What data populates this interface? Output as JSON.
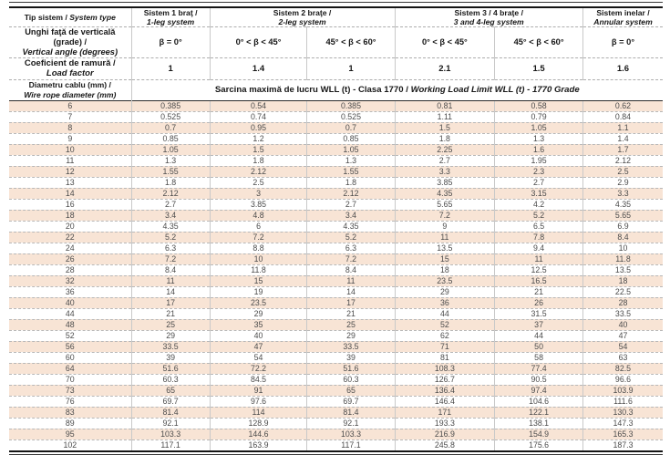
{
  "doc": {
    "language": "Romanian / English",
    "stripe_color": "#f8e4d5",
    "rule_color": "#151515"
  },
  "table": {
    "row_headers": {
      "system_type": {
        "ro": "Tip sistem /",
        "en": "System type"
      },
      "angle": {
        "ro": "Unghi faţă de verticală (grade) /",
        "en": "Vertical angle (degrees)"
      },
      "load_factor": {
        "ro": "Coeficient de ramură /",
        "en": "Load factor"
      },
      "diameter": {
        "ro": "Diametru cablu (mm) /",
        "en": "Wire rope diameter (mm)"
      }
    },
    "systems": [
      {
        "ro": "Sistem 1 braţ /",
        "en": "1-leg system"
      },
      {
        "ro": "Sistem 2 braţe /",
        "en": "2-leg system"
      },
      {
        "ro": "Sistem 3 / 4 braţe /",
        "en": "3 and 4-leg system"
      },
      {
        "ro": "Sistem inelar /",
        "en": "Annular system"
      }
    ],
    "angles": [
      "β = 0°",
      "0° < β < 45°",
      "45° < β < 60°",
      "0° < β < 45°",
      "45° < β < 60°",
      "β = 0°"
    ],
    "load_factors": [
      "1",
      "1.4",
      "1",
      "2.1",
      "1.5",
      "1.6"
    ],
    "wll_title": {
      "ro": "Sarcina maximă de lucru WLL (t) - Clasa 1770 /",
      "en": "Working Load Limit WLL (t) - 1770 Grade"
    },
    "rows": [
      {
        "d": "6",
        "v": [
          "0.385",
          "0.54",
          "0.385",
          "0.81",
          "0.58",
          "0.62"
        ]
      },
      {
        "d": "7",
        "v": [
          "0.525",
          "0.74",
          "0.525",
          "1.11",
          "0.79",
          "0.84"
        ]
      },
      {
        "d": "8",
        "v": [
          "0.7",
          "0.95",
          "0.7",
          "1.5",
          "1.05",
          "1.1"
        ]
      },
      {
        "d": "9",
        "v": [
          "0.85",
          "1.2",
          "0.85",
          "1.8",
          "1.3",
          "1.4"
        ]
      },
      {
        "d": "10",
        "v": [
          "1.05",
          "1.5",
          "1.05",
          "2.25",
          "1.6",
          "1.7"
        ]
      },
      {
        "d": "11",
        "v": [
          "1.3",
          "1.8",
          "1.3",
          "2.7",
          "1.95",
          "2.12"
        ]
      },
      {
        "d": "12",
        "v": [
          "1.55",
          "2.12",
          "1.55",
          "3.3",
          "2.3",
          "2.5"
        ]
      },
      {
        "d": "13",
        "v": [
          "1.8",
          "2.5",
          "1.8",
          "3.85",
          "2.7",
          "2.9"
        ]
      },
      {
        "d": "14",
        "v": [
          "2.12",
          "3",
          "2.12",
          "4.35",
          "3.15",
          "3.3"
        ]
      },
      {
        "d": "16",
        "v": [
          "2.7",
          "3.85",
          "2.7",
          "5.65",
          "4.2",
          "4.35"
        ]
      },
      {
        "d": "18",
        "v": [
          "3.4",
          "4.8",
          "3.4",
          "7.2",
          "5.2",
          "5.65"
        ]
      },
      {
        "d": "20",
        "v": [
          "4.35",
          "6",
          "4.35",
          "9",
          "6.5",
          "6.9"
        ]
      },
      {
        "d": "22",
        "v": [
          "5.2",
          "7.2",
          "5.2",
          "11",
          "7.8",
          "8.4"
        ]
      },
      {
        "d": "24",
        "v": [
          "6.3",
          "8.8",
          "6.3",
          "13.5",
          "9.4",
          "10"
        ]
      },
      {
        "d": "26",
        "v": [
          "7.2",
          "10",
          "7.2",
          "15",
          "11",
          "11.8"
        ]
      },
      {
        "d": "28",
        "v": [
          "8.4",
          "11.8",
          "8.4",
          "18",
          "12.5",
          "13.5"
        ]
      },
      {
        "d": "32",
        "v": [
          "11",
          "15",
          "11",
          "23.5",
          "16.5",
          "18"
        ]
      },
      {
        "d": "36",
        "v": [
          "14",
          "19",
          "14",
          "29",
          "21",
          "22.5"
        ]
      },
      {
        "d": "40",
        "v": [
          "17",
          "23.5",
          "17",
          "36",
          "26",
          "28"
        ]
      },
      {
        "d": "44",
        "v": [
          "21",
          "29",
          "21",
          "44",
          "31.5",
          "33.5"
        ]
      },
      {
        "d": "48",
        "v": [
          "25",
          "35",
          "25",
          "52",
          "37",
          "40"
        ]
      },
      {
        "d": "52",
        "v": [
          "29",
          "40",
          "29",
          "62",
          "44",
          "47"
        ]
      },
      {
        "d": "56",
        "v": [
          "33.5",
          "47",
          "33.5",
          "71",
          "50",
          "54"
        ]
      },
      {
        "d": "60",
        "v": [
          "39",
          "54",
          "39",
          "81",
          "58",
          "63"
        ]
      },
      {
        "d": "64",
        "v": [
          "51.6",
          "72.2",
          "51.6",
          "108.3",
          "77.4",
          "82.5"
        ]
      },
      {
        "d": "70",
        "v": [
          "60.3",
          "84.5",
          "60.3",
          "126.7",
          "90.5",
          "96.6"
        ]
      },
      {
        "d": "73",
        "v": [
          "65",
          "91",
          "65",
          "136.4",
          "97.4",
          "103.9"
        ]
      },
      {
        "d": "76",
        "v": [
          "69.7",
          "97.6",
          "69.7",
          "146.4",
          "104.6",
          "111.6"
        ]
      },
      {
        "d": "83",
        "v": [
          "81.4",
          "114",
          "81.4",
          "171",
          "122.1",
          "130.3"
        ]
      },
      {
        "d": "89",
        "v": [
          "92.1",
          "128.9",
          "92.1",
          "193.3",
          "138.1",
          "147.3"
        ]
      },
      {
        "d": "95",
        "v": [
          "103.3",
          "144.6",
          "103.3",
          "216.9",
          "154.9",
          "165.3"
        ]
      },
      {
        "d": "102",
        "v": [
          "117.1",
          "163.9",
          "117.1",
          "245.8",
          "175.6",
          "187.3"
        ]
      }
    ]
  }
}
